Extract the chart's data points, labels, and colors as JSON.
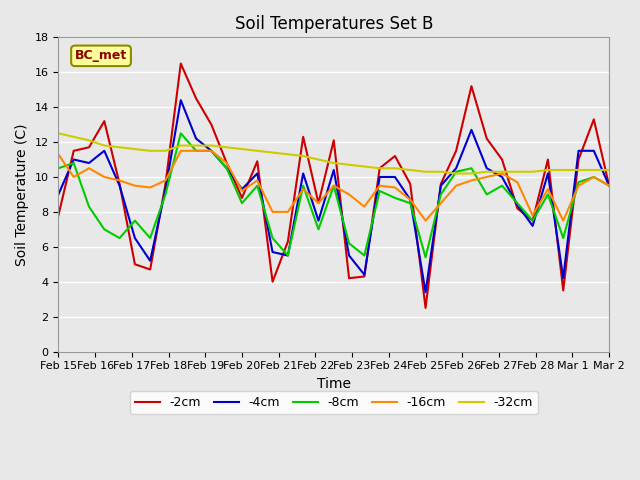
{
  "title": "Soil Temperatures Set B",
  "xlabel": "Time",
  "ylabel": "Soil Temperature (C)",
  "annotation": "BC_met",
  "ylim": [
    0,
    18
  ],
  "bg_color": "#e8e8e8",
  "plot_bg_color": "#e8e8e8",
  "grid_color": "white",
  "series": {
    "-2cm": {
      "color": "#cc0000",
      "lw": 1.5
    },
    "-4cm": {
      "color": "#0000cc",
      "lw": 1.5
    },
    "-8cm": {
      "color": "#00cc00",
      "lw": 1.5
    },
    "-16cm": {
      "color": "#ff8800",
      "lw": 1.5
    },
    "-32cm": {
      "color": "#cccc00",
      "lw": 1.5
    }
  },
  "x_labels": [
    "Feb 15",
    "Feb 16",
    "Feb 17",
    "Feb 18",
    "Feb 19",
    "Feb 20",
    "Feb 21",
    "Feb 22",
    "Feb 23",
    "Feb 24",
    "Feb 25",
    "Feb 26",
    "Feb 27",
    "Feb 28",
    "Mar 1",
    "Mar 2"
  ],
  "data_2cm": [
    7.8,
    11.5,
    11.7,
    13.2,
    9.6,
    5.0,
    4.7,
    9.6,
    16.5,
    14.5,
    13.0,
    10.8,
    8.8,
    10.9,
    4.0,
    6.3,
    12.3,
    8.5,
    12.1,
    4.2,
    4.3,
    10.5,
    11.2,
    9.6,
    2.5,
    9.6,
    11.5,
    15.2,
    12.2,
    11.0,
    8.2,
    7.5,
    11.0,
    3.5,
    11.0,
    13.3,
    9.5
  ],
  "data_4cm": [
    9.0,
    11.0,
    10.8,
    11.5,
    9.5,
    6.5,
    5.2,
    9.3,
    14.4,
    12.2,
    11.5,
    10.5,
    9.3,
    10.2,
    5.7,
    5.5,
    10.2,
    7.5,
    10.4,
    5.5,
    4.4,
    10.0,
    10.0,
    8.7,
    3.4,
    9.5,
    10.5,
    12.7,
    10.5,
    10.0,
    8.4,
    7.2,
    10.2,
    4.2,
    11.5,
    11.5,
    9.5
  ],
  "data_8cm": [
    10.5,
    10.8,
    8.3,
    7.0,
    6.5,
    7.5,
    6.5,
    9.0,
    12.5,
    11.5,
    11.5,
    10.5,
    8.5,
    9.5,
    6.5,
    5.5,
    9.5,
    7.0,
    9.5,
    6.2,
    5.5,
    9.2,
    8.8,
    8.5,
    5.4,
    9.0,
    10.3,
    10.5,
    9.0,
    9.5,
    8.5,
    7.5,
    9.0,
    6.5,
    9.7,
    10.0,
    9.5
  ],
  "data_16cm": [
    11.3,
    10.0,
    10.5,
    10.0,
    9.8,
    9.5,
    9.4,
    9.8,
    11.5,
    11.5,
    11.5,
    10.8,
    9.2,
    9.8,
    8.0,
    8.0,
    9.3,
    8.5,
    9.5,
    9.0,
    8.3,
    9.5,
    9.4,
    8.7,
    7.5,
    8.5,
    9.5,
    9.8,
    10.0,
    10.2,
    9.7,
    7.8,
    9.3,
    7.5,
    9.5,
    10.0,
    9.5
  ],
  "data_32cm": [
    12.5,
    12.3,
    12.1,
    11.8,
    11.7,
    11.6,
    11.5,
    11.5,
    11.8,
    11.8,
    11.8,
    11.7,
    11.6,
    11.5,
    11.4,
    11.3,
    11.2,
    11.0,
    10.8,
    10.7,
    10.6,
    10.5,
    10.5,
    10.4,
    10.3,
    10.3,
    10.2,
    10.2,
    10.3,
    10.3,
    10.3,
    10.3,
    10.4,
    10.4,
    10.4,
    10.4,
    10.4
  ]
}
